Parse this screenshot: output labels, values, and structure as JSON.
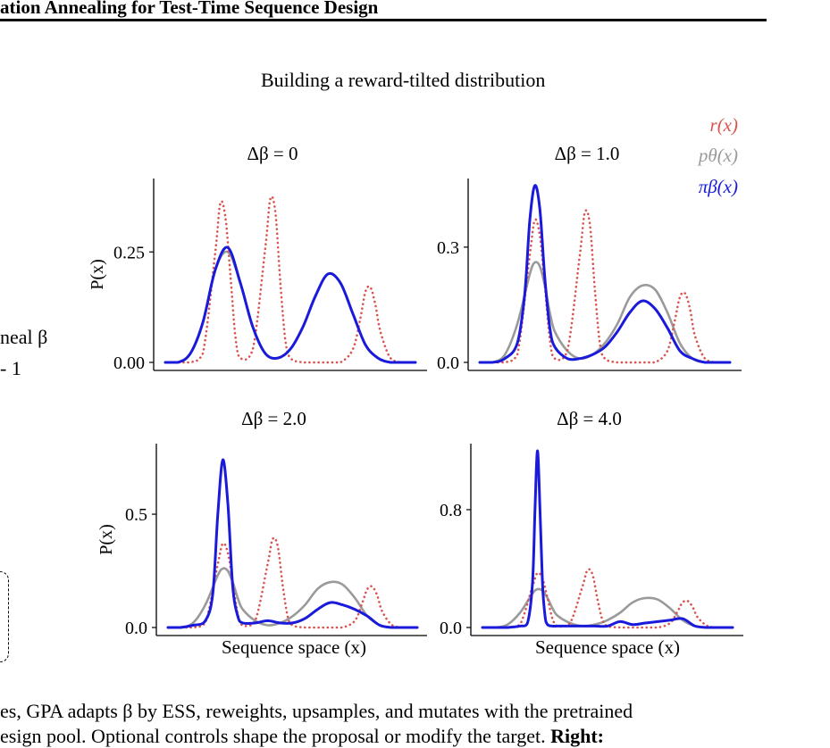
{
  "header": {
    "text": "ation Annealing for Test-Time Sequence Design"
  },
  "figure": {
    "title": "Building a reward-tilted distribution",
    "legend": [
      {
        "label": "r(x)",
        "color": "#d9534f"
      },
      {
        "label": "pθ(x)",
        "color": "#9a9a9a"
      },
      {
        "label": "πβ(x)",
        "color": "#1a1adb"
      }
    ],
    "left_cut_text": {
      "line1": "neal β",
      "line2": "- 1"
    },
    "xlabel": "Sequence space (x)",
    "ylabel": "P(x)"
  },
  "caption": {
    "line1_text": "es, GPA adapts β by ESS, reweights, upsamples, and mutates with the pretrained",
    "line2_text": "esign pool. Optional controls shape the proposal or modify the target.",
    "line2_bold": "Right:"
  },
  "chart_data": [
    {
      "type": "line",
      "title": "Δβ = 0",
      "ylabel": "P(x)",
      "yticks": [
        0.0,
        0.25
      ],
      "ytick_labels": [
        "0.00",
        "0.25"
      ],
      "ylim": [
        0,
        0.4
      ],
      "xlim": [
        0,
        1
      ],
      "series": [
        {
          "name": "r(x)",
          "color": "#d9534f",
          "style": "dotted",
          "x": [
            0.0,
            0.05,
            0.1,
            0.15,
            0.2,
            0.22,
            0.24,
            0.26,
            0.28,
            0.3,
            0.35,
            0.4,
            0.42,
            0.44,
            0.46,
            0.48,
            0.5,
            0.55,
            0.6,
            0.65,
            0.7,
            0.75,
            0.78,
            0.8,
            0.82,
            0.84,
            0.86,
            0.9,
            0.95,
            1.0
          ],
          "y": [
            0.0,
            0.0,
            0.0,
            0.02,
            0.25,
            0.36,
            0.33,
            0.2,
            0.06,
            0.01,
            0.03,
            0.26,
            0.37,
            0.34,
            0.18,
            0.05,
            0.01,
            0.0,
            0.0,
            0.0,
            0.0,
            0.03,
            0.1,
            0.16,
            0.17,
            0.13,
            0.07,
            0.01,
            0.0,
            0.0
          ]
        },
        {
          "name": "pθ(x)",
          "color": "#9a9a9a",
          "style": "solid",
          "x": [
            0.0,
            0.05,
            0.1,
            0.15,
            0.2,
            0.25,
            0.3,
            0.35,
            0.4,
            0.45,
            0.5,
            0.55,
            0.6,
            0.65,
            0.7,
            0.75,
            0.8,
            0.85,
            0.9,
            0.95,
            1.0
          ],
          "y": [
            0.0,
            0.0,
            0.02,
            0.09,
            0.21,
            0.25,
            0.18,
            0.08,
            0.02,
            0.01,
            0.03,
            0.08,
            0.15,
            0.2,
            0.18,
            0.11,
            0.04,
            0.01,
            0.0,
            0.0,
            0.0
          ]
        },
        {
          "name": "πβ(x)",
          "color": "#1a1adb",
          "style": "solid",
          "x": [
            0.0,
            0.05,
            0.1,
            0.15,
            0.2,
            0.25,
            0.3,
            0.35,
            0.4,
            0.45,
            0.5,
            0.55,
            0.6,
            0.65,
            0.7,
            0.75,
            0.8,
            0.85,
            0.9,
            0.95,
            1.0
          ],
          "y": [
            0.0,
            0.0,
            0.02,
            0.09,
            0.21,
            0.26,
            0.18,
            0.08,
            0.02,
            0.01,
            0.03,
            0.08,
            0.15,
            0.2,
            0.18,
            0.11,
            0.04,
            0.01,
            0.0,
            0.0,
            0.0
          ]
        }
      ]
    },
    {
      "type": "line",
      "title": "Δβ = 1.0",
      "ylabel": "",
      "yticks": [
        0.0,
        0.3
      ],
      "ytick_labels": [
        "0.0",
        "0.3"
      ],
      "ylim": [
        0,
        0.46
      ],
      "xlim": [
        0,
        1
      ],
      "series": [
        {
          "name": "r(x)",
          "color": "#d9534f",
          "style": "dotted",
          "x": [
            0.0,
            0.05,
            0.1,
            0.15,
            0.2,
            0.22,
            0.24,
            0.26,
            0.28,
            0.3,
            0.35,
            0.4,
            0.42,
            0.44,
            0.46,
            0.48,
            0.5,
            0.55,
            0.6,
            0.65,
            0.7,
            0.75,
            0.78,
            0.8,
            0.82,
            0.84,
            0.86,
            0.9,
            0.95,
            1.0
          ],
          "y": [
            0.0,
            0.0,
            0.0,
            0.02,
            0.28,
            0.37,
            0.33,
            0.2,
            0.06,
            0.01,
            0.03,
            0.28,
            0.39,
            0.36,
            0.19,
            0.05,
            0.01,
            0.0,
            0.0,
            0.0,
            0.0,
            0.03,
            0.11,
            0.17,
            0.18,
            0.14,
            0.07,
            0.01,
            0.0,
            0.0
          ]
        },
        {
          "name": "pθ(x)",
          "color": "#9a9a9a",
          "style": "solid",
          "x": [
            0.0,
            0.05,
            0.1,
            0.15,
            0.2,
            0.22,
            0.24,
            0.26,
            0.28,
            0.3,
            0.35,
            0.4,
            0.45,
            0.5,
            0.55,
            0.6,
            0.65,
            0.7,
            0.75,
            0.8,
            0.85,
            0.9,
            0.95,
            1.0
          ],
          "y": [
            0.0,
            0.0,
            0.02,
            0.1,
            0.23,
            0.26,
            0.25,
            0.2,
            0.13,
            0.08,
            0.03,
            0.01,
            0.02,
            0.05,
            0.1,
            0.17,
            0.2,
            0.19,
            0.13,
            0.05,
            0.01,
            0.0,
            0.0,
            0.0
          ]
        },
        {
          "name": "πβ(x)",
          "color": "#1a1adb",
          "style": "solid",
          "x": [
            0.0,
            0.05,
            0.1,
            0.15,
            0.18,
            0.2,
            0.22,
            0.24,
            0.26,
            0.28,
            0.3,
            0.35,
            0.4,
            0.45,
            0.5,
            0.55,
            0.6,
            0.65,
            0.7,
            0.75,
            0.8,
            0.85,
            0.9,
            0.95,
            1.0
          ],
          "y": [
            0.0,
            0.0,
            0.01,
            0.05,
            0.18,
            0.37,
            0.46,
            0.4,
            0.22,
            0.09,
            0.04,
            0.01,
            0.01,
            0.02,
            0.04,
            0.08,
            0.13,
            0.16,
            0.14,
            0.09,
            0.03,
            0.01,
            0.0,
            0.0,
            0.0
          ]
        }
      ]
    },
    {
      "type": "line",
      "title": "Δβ = 2.0",
      "ylabel": "P(x)",
      "yticks": [
        0.0,
        0.5
      ],
      "ytick_labels": [
        "0.0",
        "0.5"
      ],
      "ylim": [
        0,
        0.78
      ],
      "xlim": [
        0,
        1
      ],
      "series": [
        {
          "name": "r(x)",
          "color": "#d9534f",
          "style": "dotted",
          "x": [
            0.0,
            0.05,
            0.1,
            0.15,
            0.2,
            0.22,
            0.24,
            0.26,
            0.28,
            0.3,
            0.35,
            0.4,
            0.42,
            0.44,
            0.46,
            0.48,
            0.5,
            0.55,
            0.6,
            0.65,
            0.7,
            0.75,
            0.78,
            0.8,
            0.82,
            0.84,
            0.86,
            0.9,
            0.95,
            1.0
          ],
          "y": [
            0.0,
            0.0,
            0.0,
            0.02,
            0.28,
            0.37,
            0.33,
            0.2,
            0.06,
            0.01,
            0.03,
            0.28,
            0.39,
            0.36,
            0.19,
            0.05,
            0.01,
            0.0,
            0.0,
            0.0,
            0.0,
            0.03,
            0.11,
            0.17,
            0.18,
            0.14,
            0.07,
            0.01,
            0.0,
            0.0
          ]
        },
        {
          "name": "pθ(x)",
          "color": "#9a9a9a",
          "style": "solid",
          "x": [
            0.0,
            0.05,
            0.1,
            0.15,
            0.2,
            0.22,
            0.24,
            0.26,
            0.28,
            0.3,
            0.35,
            0.4,
            0.45,
            0.5,
            0.55,
            0.6,
            0.65,
            0.7,
            0.75,
            0.8,
            0.85,
            0.9,
            0.95,
            1.0
          ],
          "y": [
            0.0,
            0.0,
            0.02,
            0.1,
            0.23,
            0.26,
            0.25,
            0.2,
            0.13,
            0.08,
            0.03,
            0.01,
            0.02,
            0.05,
            0.1,
            0.17,
            0.2,
            0.19,
            0.13,
            0.05,
            0.01,
            0.0,
            0.0,
            0.0
          ]
        },
        {
          "name": "πβ(x)",
          "color": "#1a1adb",
          "style": "solid",
          "x": [
            0.0,
            0.05,
            0.1,
            0.15,
            0.18,
            0.2,
            0.22,
            0.24,
            0.26,
            0.28,
            0.3,
            0.35,
            0.4,
            0.45,
            0.5,
            0.55,
            0.6,
            0.65,
            0.7,
            0.75,
            0.8,
            0.85,
            0.9,
            0.95,
            1.0
          ],
          "y": [
            0.0,
            0.0,
            0.01,
            0.03,
            0.15,
            0.5,
            0.74,
            0.55,
            0.18,
            0.05,
            0.02,
            0.02,
            0.03,
            0.02,
            0.02,
            0.04,
            0.08,
            0.11,
            0.1,
            0.08,
            0.05,
            0.01,
            0.0,
            0.0,
            0.0
          ]
        }
      ]
    },
    {
      "type": "line",
      "title": "Δβ = 4.0",
      "ylabel": "",
      "yticks": [
        0.0,
        0.8
      ],
      "ytick_labels": [
        "0.0",
        "0.8"
      ],
      "ylim": [
        0,
        1.2
      ],
      "xlim": [
        0,
        1
      ],
      "series": [
        {
          "name": "r(x)",
          "color": "#d9534f",
          "style": "dotted",
          "x": [
            0.0,
            0.05,
            0.1,
            0.15,
            0.2,
            0.22,
            0.24,
            0.26,
            0.28,
            0.3,
            0.35,
            0.4,
            0.42,
            0.44,
            0.46,
            0.48,
            0.5,
            0.55,
            0.6,
            0.65,
            0.7,
            0.75,
            0.78,
            0.8,
            0.82,
            0.84,
            0.86,
            0.9,
            0.95,
            1.0
          ],
          "y": [
            0.0,
            0.0,
            0.0,
            0.02,
            0.28,
            0.37,
            0.33,
            0.2,
            0.06,
            0.01,
            0.03,
            0.28,
            0.39,
            0.36,
            0.19,
            0.05,
            0.01,
            0.0,
            0.0,
            0.0,
            0.0,
            0.03,
            0.11,
            0.17,
            0.18,
            0.14,
            0.07,
            0.01,
            0.0,
            0.0
          ]
        },
        {
          "name": "pθ(x)",
          "color": "#9a9a9a",
          "style": "solid",
          "x": [
            0.0,
            0.05,
            0.1,
            0.15,
            0.2,
            0.22,
            0.24,
            0.26,
            0.28,
            0.3,
            0.35,
            0.4,
            0.45,
            0.5,
            0.55,
            0.6,
            0.65,
            0.7,
            0.75,
            0.8,
            0.85,
            0.9,
            0.95,
            1.0
          ],
          "y": [
            0.0,
            0.0,
            0.02,
            0.1,
            0.23,
            0.26,
            0.25,
            0.2,
            0.13,
            0.08,
            0.03,
            0.01,
            0.02,
            0.05,
            0.1,
            0.17,
            0.2,
            0.19,
            0.13,
            0.05,
            0.01,
            0.0,
            0.0,
            0.0
          ]
        },
        {
          "name": "πβ(x)",
          "color": "#1a1adb",
          "style": "solid",
          "x": [
            0.0,
            0.05,
            0.1,
            0.15,
            0.18,
            0.2,
            0.21,
            0.22,
            0.23,
            0.24,
            0.25,
            0.26,
            0.28,
            0.3,
            0.35,
            0.4,
            0.45,
            0.5,
            0.55,
            0.6,
            0.65,
            0.7,
            0.75,
            0.8,
            0.85,
            0.9,
            0.95,
            1.0
          ],
          "y": [
            0.0,
            0.0,
            0.0,
            0.01,
            0.03,
            0.3,
            0.8,
            1.2,
            0.8,
            0.3,
            0.08,
            0.02,
            0.01,
            0.01,
            0.01,
            0.01,
            0.01,
            0.01,
            0.04,
            0.02,
            0.03,
            0.04,
            0.05,
            0.06,
            0.01,
            0.0,
            0.0,
            0.0
          ]
        }
      ]
    }
  ]
}
